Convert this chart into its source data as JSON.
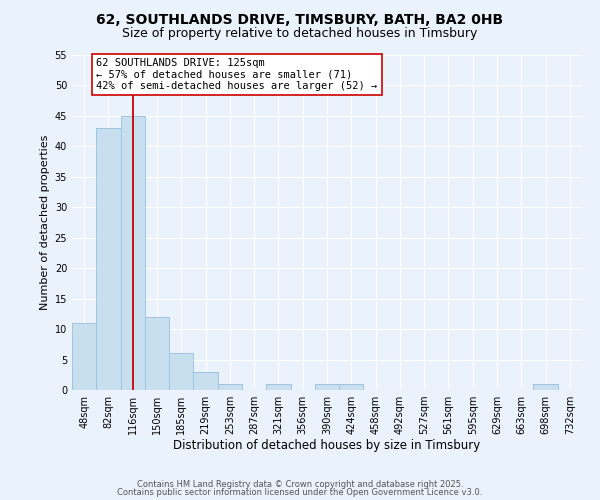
{
  "title": "62, SOUTHLANDS DRIVE, TIMSBURY, BATH, BA2 0HB",
  "subtitle": "Size of property relative to detached houses in Timsbury",
  "xlabel": "Distribution of detached houses by size in Timsbury",
  "ylabel": "Number of detached properties",
  "bin_labels": [
    "48sqm",
    "82sqm",
    "116sqm",
    "150sqm",
    "185sqm",
    "219sqm",
    "253sqm",
    "287sqm",
    "321sqm",
    "356sqm",
    "390sqm",
    "424sqm",
    "458sqm",
    "492sqm",
    "527sqm",
    "561sqm",
    "595sqm",
    "629sqm",
    "663sqm",
    "698sqm",
    "732sqm"
  ],
  "bar_heights": [
    11,
    43,
    45,
    12,
    6,
    3,
    1,
    0,
    1,
    0,
    1,
    1,
    0,
    0,
    0,
    0,
    0,
    0,
    0,
    1,
    0
  ],
  "bar_color": "#c8dff0",
  "bar_edge_color": "#a0c4e0",
  "vline_x_index": 2,
  "vline_color": "#cc0000",
  "ylim": [
    0,
    55
  ],
  "annotation_text": "62 SOUTHLANDS DRIVE: 125sqm\n← 57% of detached houses are smaller (71)\n42% of semi-detached houses are larger (52) →",
  "annotation_box_color": "#ffffff",
  "annotation_box_edge_color": "#cc0000",
  "annotation_fontsize": 7.5,
  "footer_line1": "Contains HM Land Registry data © Crown copyright and database right 2025.",
  "footer_line2": "Contains public sector information licensed under the Open Government Licence v3.0.",
  "background_color": "#eaf2fb",
  "plot_bg_color": "#eaf2fb",
  "title_fontsize": 10,
  "subtitle_fontsize": 9,
  "xlabel_fontsize": 8.5,
  "ylabel_fontsize": 8,
  "tick_fontsize": 7,
  "footer_fontsize": 6
}
